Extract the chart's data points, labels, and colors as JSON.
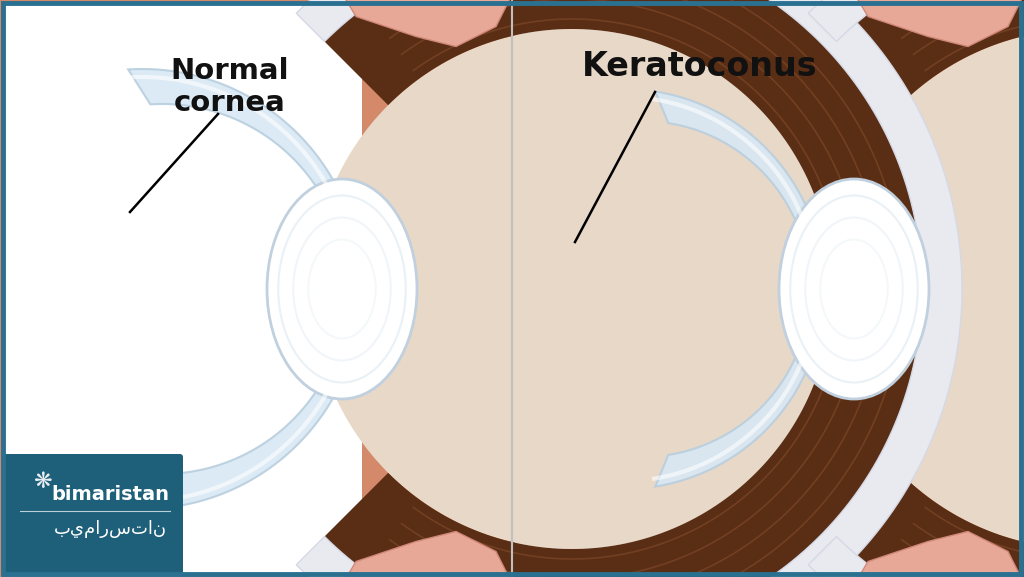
{
  "title_left": "Normal\ncornea",
  "title_right": "Keratoconus",
  "skin_color": "#d4896a",
  "sclera_white": "#e8eaf0",
  "sclera_rim": "#d5d8e5",
  "choroid_brown": "#5a2e14",
  "choroid_brown2": "#7a3e20",
  "lens_white": "#dce8f0",
  "lens_white2": "#c0d0de",
  "tissue_pink": "#e8a898",
  "tissue_pink2": "#d08878",
  "tissue_pink3": "#f0bfb0",
  "cornea_light": "#d8e8f4",
  "cornea_mid": "#b8cede",
  "border_color": "#2a7090",
  "divider_color": "#c0c0c0",
  "text_color": "#111111",
  "logo_bg": "#1e5f7a",
  "logo_text": "#ffffff",
  "figsize": [
    10.24,
    5.77
  ],
  "dpi": 100
}
